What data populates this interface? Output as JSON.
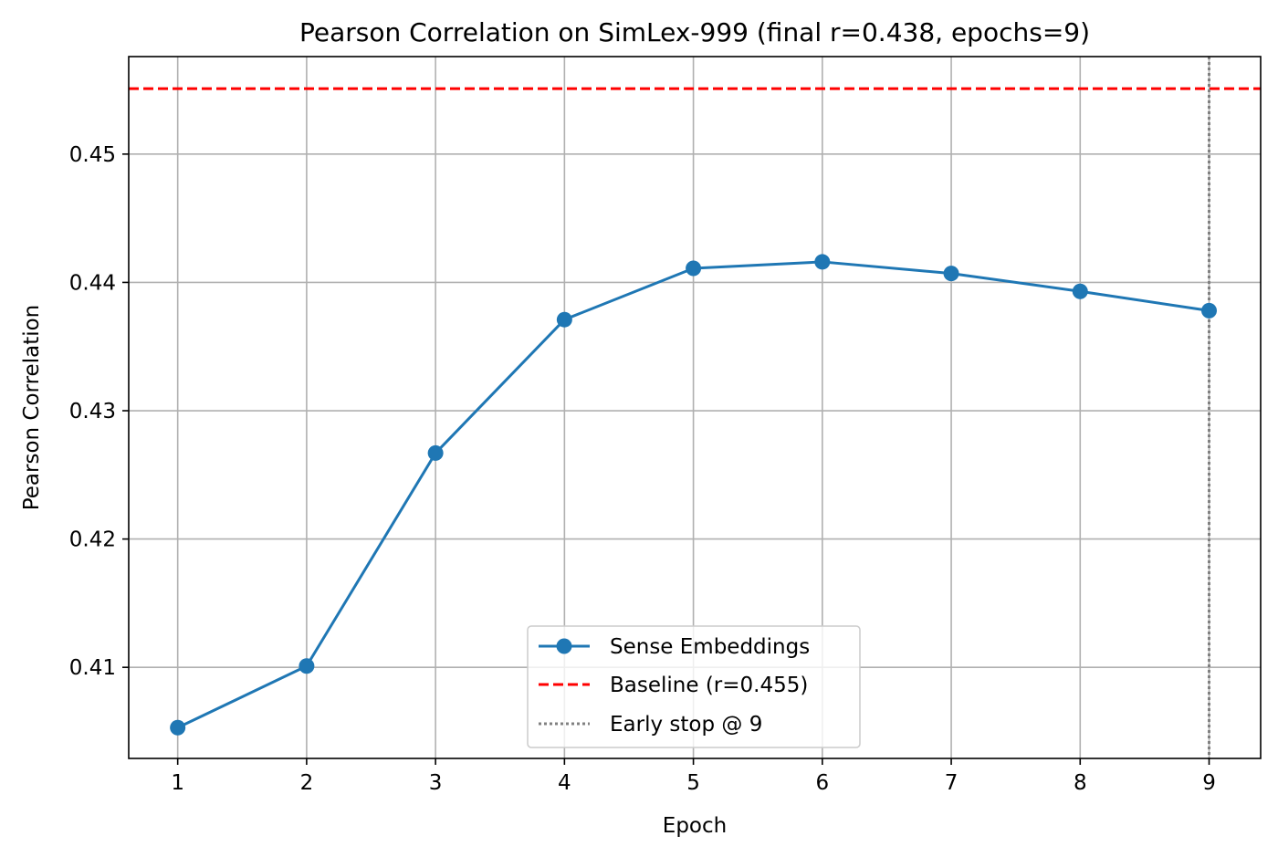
{
  "chart_data": {
    "type": "line",
    "title": "Pearson Correlation on SimLex-999 (final r=0.438, epochs=9)",
    "xlabel": "Epoch",
    "ylabel": "Pearson Correlation",
    "x": [
      1,
      2,
      3,
      4,
      5,
      6,
      7,
      8,
      9
    ],
    "xlim": [
      0.62,
      9.4
    ],
    "ylim": [
      0.4029,
      0.4576
    ],
    "xticks": [
      "1",
      "2",
      "3",
      "4",
      "5",
      "6",
      "7",
      "8",
      "9"
    ],
    "yticks": [
      0.41,
      0.42,
      0.43,
      0.44,
      0.45
    ],
    "ytick_labels": [
      "0.41",
      "0.42",
      "0.43",
      "0.44",
      "0.45"
    ],
    "grid": true,
    "series": [
      {
        "name": "Sense Embeddings",
        "style": "line-marker",
        "color": "#1f77b4",
        "values": [
          0.4053,
          0.4101,
          0.4267,
          0.4371,
          0.4411,
          0.4416,
          0.4407,
          0.4393,
          0.4378
        ]
      }
    ],
    "reference_lines": [
      {
        "name": "Baseline (r=0.455)",
        "orientation": "horizontal",
        "value": 0.4551,
        "color": "#ff0000",
        "style": "dashed"
      },
      {
        "name": "Early stop @ 9",
        "orientation": "vertical",
        "value": 9,
        "color": "#808080",
        "style": "dotted"
      }
    ],
    "legend": {
      "position": "lower-center",
      "entries": [
        "Sense Embeddings",
        "Baseline (r=0.455)",
        "Early stop @ 9"
      ]
    }
  }
}
